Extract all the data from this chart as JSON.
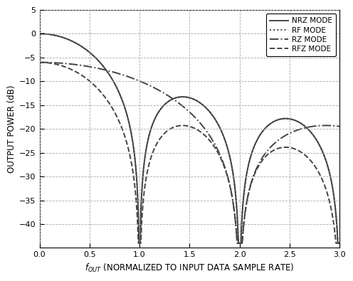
{
  "ylabel": "OUTPUT POWER (dB)",
  "xlabel_main": "f",
  "xlabel_sub": "OUT",
  "xlabel_suffix": " (NORMALIZED TO INPUT DATA SAMPLE RATE)",
  "xlim": [
    0,
    3.0
  ],
  "ylim": [
    -45,
    5
  ],
  "xticks": [
    0,
    0.5,
    1.0,
    1.5,
    2.0,
    2.5,
    3.0
  ],
  "yticks": [
    -40,
    -35,
    -30,
    -25,
    -20,
    -15,
    -10,
    -5,
    0,
    5
  ],
  "grid_color": "#aaaaaa",
  "line_color": "#444444",
  "bg_color": "#ffffff",
  "legend_entries": [
    "NRZ MODE",
    "RF MODE",
    "RZ MODE",
    "RFZ MODE"
  ],
  "legend_linestyles": [
    "-",
    ":",
    "-.",
    "--"
  ],
  "linewidth": 1.4,
  "legend_fontsize": 7.5,
  "axis_label_fontsize": 8.5,
  "tick_fontsize": 8,
  "clip_bottom": -44.0
}
